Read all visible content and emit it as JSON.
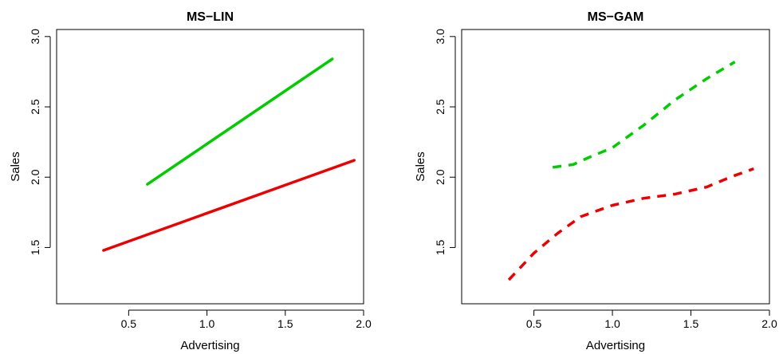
{
  "chart_data": [
    {
      "type": "line",
      "title": "MS−LIN",
      "xlabel": "Advertising",
      "ylabel": "Sales",
      "xlim": [
        0.04,
        2.0
      ],
      "ylim": [
        1.1,
        3.05
      ],
      "xticks": [
        "0.5",
        "1.0",
        "1.5",
        "2.0"
      ],
      "yticks": [
        "1.5",
        "2.0",
        "2.5",
        "3.0"
      ],
      "line_style": "solid",
      "series": [
        {
          "color": "#00cc00",
          "x": [
            0.62,
            1.8
          ],
          "y": [
            1.95,
            2.84
          ]
        },
        {
          "color": "#ee0000",
          "x": [
            0.34,
            1.94
          ],
          "y": [
            1.48,
            2.12
          ]
        }
      ]
    },
    {
      "type": "line",
      "title": "MS−GAM",
      "xlabel": "Advertising",
      "ylabel": "Sales",
      "xlim": [
        0.04,
        2.0
      ],
      "ylim": [
        1.1,
        3.05
      ],
      "xticks": [
        "0.5",
        "1.0",
        "1.5",
        "2.0"
      ],
      "yticks": [
        "1.5",
        "2.0",
        "2.5",
        "3.0"
      ],
      "line_style": "dashed",
      "series": [
        {
          "color": "#00cc00",
          "x": [
            0.62,
            0.75,
            0.85,
            1.0,
            1.2,
            1.4,
            1.6,
            1.78
          ],
          "y": [
            2.07,
            2.09,
            2.14,
            2.21,
            2.37,
            2.55,
            2.7,
            2.82
          ]
        },
        {
          "color": "#ee0000",
          "x": [
            0.34,
            0.5,
            0.65,
            0.8,
            1.0,
            1.2,
            1.4,
            1.6,
            1.75,
            1.9
          ],
          "y": [
            1.27,
            1.46,
            1.6,
            1.72,
            1.8,
            1.85,
            1.88,
            1.93,
            2.0,
            2.06
          ]
        }
      ]
    }
  ]
}
